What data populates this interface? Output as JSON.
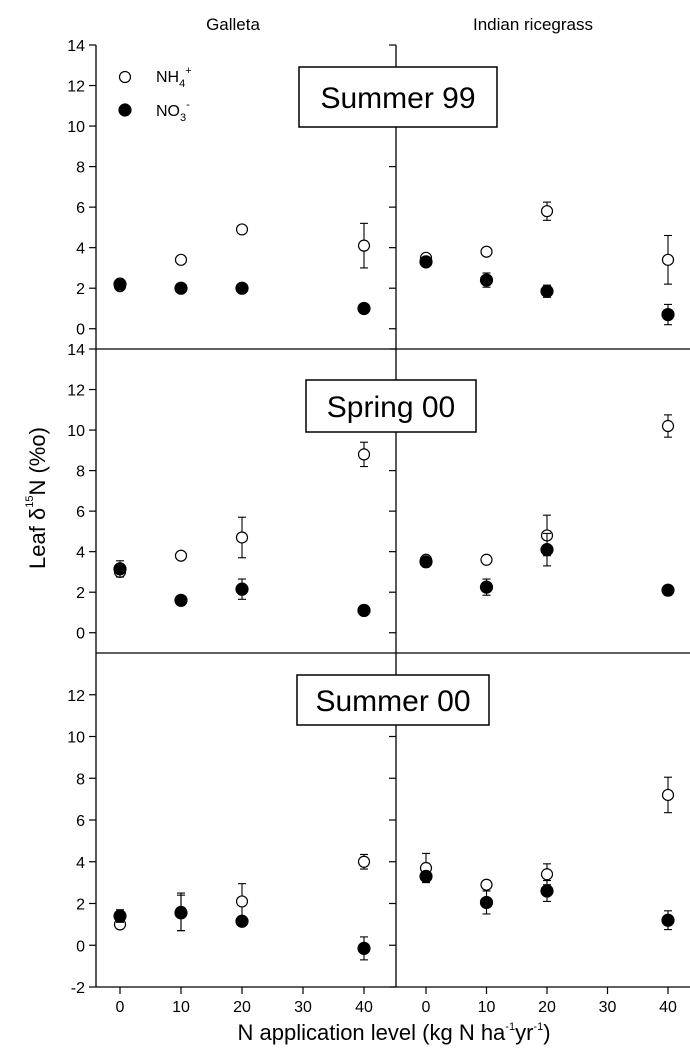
{
  "figure": {
    "column_titles": [
      "Galleta",
      "Indian ricegrass"
    ],
    "y_label": {
      "pre": "Leaf δ",
      "sup": "15",
      "post": "N (%o)"
    },
    "x_label": {
      "a": "N application level (kg N ha",
      "sup1": "-1",
      "b": "yr",
      "sup2": "-1",
      "c": ")"
    },
    "legend": [
      {
        "name": "NH4+",
        "base": "NH",
        "sub": "4",
        "sup": "+",
        "marker": "open-circle"
      },
      {
        "name": "NO3-",
        "base": "NO",
        "sub": "3",
        "sup": "-",
        "marker": "filled-circle"
      }
    ],
    "panel_labels": [
      "Summer 99",
      "Spring 00",
      "Summer 00"
    ]
  },
  "chart_data": [
    {
      "type": "scatter",
      "panel": "Summer 99",
      "column": "Galleta",
      "x": [
        0,
        10,
        20,
        40
      ],
      "xlim": [
        -5,
        45
      ],
      "ylim": [
        -1,
        14
      ],
      "series": [
        {
          "name": "NH4+",
          "marker": "open-circle",
          "y": [
            2.1,
            3.4,
            4.9,
            4.1
          ],
          "err": [
            0.1,
            0.1,
            0.1,
            1.1
          ]
        },
        {
          "name": "NO3-",
          "marker": "filled-circle",
          "y": [
            2.2,
            2.0,
            2.0,
            1.0
          ],
          "err": [
            0.25,
            0.2,
            0.1,
            0.15
          ]
        }
      ]
    },
    {
      "type": "scatter",
      "panel": "Summer 99",
      "column": "Indian ricegrass",
      "x": [
        0,
        10,
        20,
        40
      ],
      "xlim": [
        -5,
        45
      ],
      "ylim": [
        -1,
        14
      ],
      "series": [
        {
          "name": "NH4+",
          "marker": "open-circle",
          "y": [
            3.5,
            3.8,
            5.8,
            3.4
          ],
          "err": [
            0.2,
            0.1,
            0.45,
            1.2
          ]
        },
        {
          "name": "NO3-",
          "marker": "filled-circle",
          "y": [
            3.3,
            2.4,
            1.85,
            0.7
          ],
          "err": [
            0.15,
            0.35,
            0.3,
            0.5
          ]
        }
      ]
    },
    {
      "type": "scatter",
      "panel": "Spring 00",
      "column": "Galleta",
      "x": [
        0,
        10,
        20,
        40
      ],
      "xlim": [
        -5,
        45
      ],
      "ylim": [
        -1,
        14
      ],
      "series": [
        {
          "name": "NH4+",
          "marker": "open-circle",
          "y": [
            3.0,
            3.8,
            4.7,
            8.8
          ],
          "err": [
            0.2,
            0.1,
            1.0,
            0.6
          ]
        },
        {
          "name": "NO3-",
          "marker": "filled-circle",
          "y": [
            3.15,
            1.6,
            2.15,
            1.1
          ],
          "err": [
            0.4,
            0.2,
            0.5,
            0.25
          ]
        }
      ]
    },
    {
      "type": "scatter",
      "panel": "Spring 00",
      "column": "Indian ricegrass",
      "x": [
        0,
        10,
        20,
        40
      ],
      "xlim": [
        -5,
        45
      ],
      "ylim": [
        -1,
        14
      ],
      "series": [
        {
          "name": "NH4+",
          "marker": "open-circle",
          "y": [
            3.6,
            3.6,
            4.8,
            10.2
          ],
          "err": [
            0.1,
            0.1,
            1.0,
            0.55
          ]
        },
        {
          "name": "NO3-",
          "marker": "filled-circle",
          "y": [
            3.5,
            2.25,
            4.1,
            2.1
          ],
          "err": [
            0.15,
            0.4,
            0.8,
            0.1
          ]
        }
      ]
    },
    {
      "type": "scatter",
      "panel": "Summer 00",
      "column": "Galleta",
      "x": [
        0,
        10,
        20,
        40
      ],
      "xlim": [
        -5,
        45
      ],
      "ylim": [
        -2,
        14
      ],
      "series": [
        {
          "name": "NH4+",
          "marker": "open-circle",
          "y": [
            1.0,
            1.6,
            2.1,
            4.0
          ],
          "err": [
            0.1,
            0.9,
            0.85,
            0.35
          ]
        },
        {
          "name": "NO3-",
          "marker": "filled-circle",
          "y": [
            1.4,
            1.55,
            1.15,
            -0.15
          ],
          "err": [
            0.3,
            0.85,
            0.15,
            0.55
          ]
        }
      ]
    },
    {
      "type": "scatter",
      "panel": "Summer 00",
      "column": "Indian ricegrass",
      "x": [
        0,
        10,
        20,
        40
      ],
      "xlim": [
        -5,
        45
      ],
      "ylim": [
        -2,
        14
      ],
      "series": [
        {
          "name": "NH4+",
          "marker": "open-circle",
          "y": [
            3.7,
            2.9,
            3.4,
            7.2
          ],
          "err": [
            0.7,
            0.2,
            0.5,
            0.85
          ]
        },
        {
          "name": "NO3-",
          "marker": "filled-circle",
          "y": [
            3.3,
            2.05,
            2.6,
            1.2
          ],
          "err": [
            0.2,
            0.55,
            0.5,
            0.45
          ]
        }
      ]
    }
  ],
  "y_ticks_upper": [
    "0",
    "2",
    "4",
    "6",
    "8",
    "10",
    "12",
    "14"
  ],
  "y_ticks_bottom": [
    "-2",
    "0",
    "2",
    "4",
    "6",
    "8",
    "10",
    "12"
  ],
  "x_tick_labels": [
    "0",
    "10",
    "20",
    "30",
    "40"
  ]
}
